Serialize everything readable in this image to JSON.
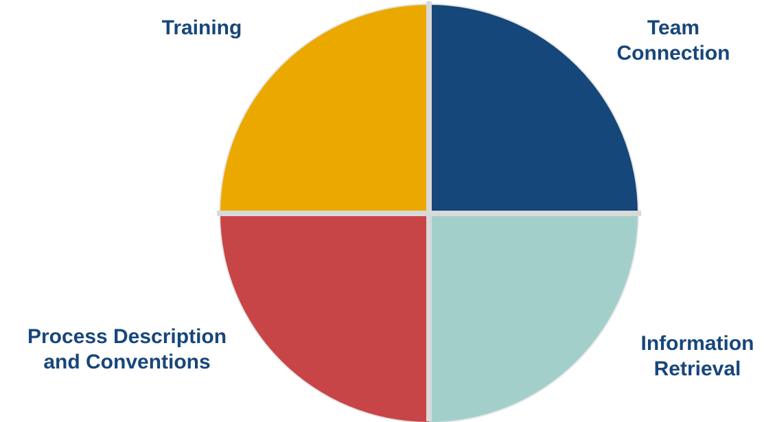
{
  "quadrants": [
    {
      "id": "team-connection",
      "lines": [
        "Team",
        "Connection"
      ],
      "color": "#15477a",
      "start_deg": 0,
      "end_deg": 90
    },
    {
      "id": "information-retrieval",
      "lines": [
        "Information",
        "Retrieval"
      ],
      "color": "#a3cfcb",
      "start_deg": 90,
      "end_deg": 180
    },
    {
      "id": "process-description",
      "lines": [
        "Process Description",
        "and Conventions"
      ],
      "color": "#c84547",
      "start_deg": 180,
      "end_deg": 270
    },
    {
      "id": "training",
      "lines": [
        "Training"
      ],
      "color": "#eba900",
      "start_deg": 270,
      "end_deg": 360
    }
  ],
  "colors": {
    "label_text": "#17467a",
    "divider": "#d9d9d9"
  }
}
